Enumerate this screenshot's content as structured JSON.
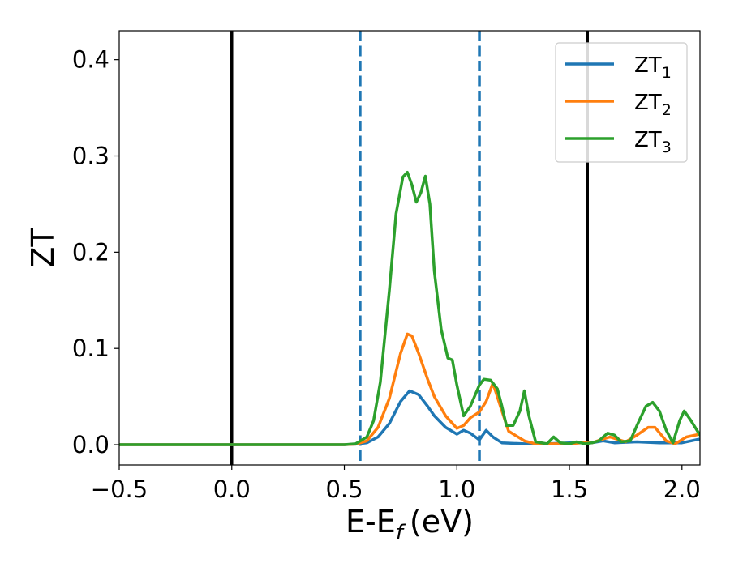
{
  "chart_data": {
    "type": "line",
    "xlabel": "E-E",
    "xlabel_sub": "f",
    "xlabel_unit": "(eV)",
    "ylabel": "ZT",
    "xlim": [
      -0.5,
      2.08
    ],
    "ylim": [
      -0.021,
      0.43
    ],
    "x_ticks": [
      -0.5,
      0.0,
      0.5,
      1.0,
      1.5,
      2.0
    ],
    "x_tick_labels": [
      "−0.5",
      "0.0",
      "0.5",
      "1.0",
      "1.5",
      "2.0"
    ],
    "y_ticks": [
      0.0,
      0.1,
      0.2,
      0.3,
      0.4
    ],
    "y_tick_labels": [
      "0.0",
      "0.1",
      "0.2",
      "0.3",
      "0.4"
    ],
    "grid": false,
    "legend_position": "top-right",
    "vertical_lines": [
      {
        "x": 0.0,
        "style": "solid",
        "color": "#000000"
      },
      {
        "x": 0.57,
        "style": "dashed",
        "color": "#1f77b4"
      },
      {
        "x": 1.1,
        "style": "dashed",
        "color": "#1f77b4"
      },
      {
        "x": 1.58,
        "style": "solid",
        "color": "#000000"
      }
    ],
    "series": [
      {
        "name": "ZT",
        "name_sub": "1",
        "color": "#1f77b4",
        "x": [
          -0.5,
          0.0,
          0.5,
          0.55,
          0.6,
          0.65,
          0.7,
          0.75,
          0.79,
          0.83,
          0.87,
          0.9,
          0.95,
          1.0,
          1.03,
          1.06,
          1.1,
          1.13,
          1.16,
          1.2,
          1.3,
          1.4,
          1.5,
          1.6,
          1.65,
          1.7,
          1.8,
          1.9,
          2.0,
          2.08
        ],
        "y": [
          0,
          0,
          0,
          0.0005,
          0.002,
          0.008,
          0.022,
          0.045,
          0.056,
          0.052,
          0.04,
          0.03,
          0.018,
          0.011,
          0.015,
          0.012,
          0.005,
          0.015,
          0.008,
          0.002,
          0.001,
          0.001,
          0.002,
          0.002,
          0.004,
          0.002,
          0.003,
          0.002,
          0.002,
          0.006
        ]
      },
      {
        "name": "ZT",
        "name_sub": "2",
        "color": "#ff7f0e",
        "x": [
          -0.5,
          0.0,
          0.5,
          0.55,
          0.6,
          0.65,
          0.7,
          0.75,
          0.78,
          0.8,
          0.83,
          0.87,
          0.9,
          0.95,
          1.0,
          1.03,
          1.06,
          1.1,
          1.13,
          1.16,
          1.2,
          1.23,
          1.3,
          1.35,
          1.4,
          1.45,
          1.5,
          1.55,
          1.6,
          1.65,
          1.68,
          1.75,
          1.8,
          1.85,
          1.88,
          1.93,
          1.97,
          2.02,
          2.08
        ],
        "y": [
          0,
          0,
          0,
          0.0005,
          0.004,
          0.018,
          0.048,
          0.095,
          0.115,
          0.113,
          0.095,
          0.068,
          0.05,
          0.03,
          0.017,
          0.02,
          0.028,
          0.034,
          0.045,
          0.064,
          0.035,
          0.014,
          0.004,
          0.001,
          0.001,
          0.001,
          0.001,
          0.002,
          0.002,
          0.006,
          0.008,
          0.003,
          0.01,
          0.018,
          0.018,
          0.004,
          0.001,
          0.008,
          0.011
        ]
      },
      {
        "name": "ZT",
        "name_sub": "3",
        "color": "#2ca02c",
        "x": [
          -0.5,
          0.0,
          0.5,
          0.55,
          0.6,
          0.63,
          0.66,
          0.7,
          0.73,
          0.76,
          0.78,
          0.8,
          0.82,
          0.84,
          0.86,
          0.88,
          0.9,
          0.93,
          0.96,
          0.98,
          1.0,
          1.03,
          1.06,
          1.1,
          1.12,
          1.15,
          1.18,
          1.2,
          1.22,
          1.25,
          1.28,
          1.3,
          1.32,
          1.35,
          1.4,
          1.43,
          1.46,
          1.5,
          1.53,
          1.57,
          1.6,
          1.63,
          1.67,
          1.7,
          1.73,
          1.77,
          1.8,
          1.84,
          1.87,
          1.9,
          1.93,
          1.96,
          1.99,
          2.01,
          2.04,
          2.08
        ],
        "y": [
          0,
          0,
          0,
          0.001,
          0.008,
          0.025,
          0.065,
          0.16,
          0.24,
          0.278,
          0.283,
          0.27,
          0.252,
          0.262,
          0.279,
          0.25,
          0.18,
          0.12,
          0.09,
          0.088,
          0.062,
          0.03,
          0.04,
          0.062,
          0.068,
          0.067,
          0.058,
          0.04,
          0.02,
          0.02,
          0.035,
          0.056,
          0.03,
          0.003,
          0.001,
          0.008,
          0.002,
          0.001,
          0.003,
          0.001,
          0.002,
          0.004,
          0.012,
          0.01,
          0.003,
          0.004,
          0.02,
          0.04,
          0.044,
          0.035,
          0.015,
          0.002,
          0.025,
          0.035,
          0.025,
          0.01
        ]
      }
    ]
  }
}
